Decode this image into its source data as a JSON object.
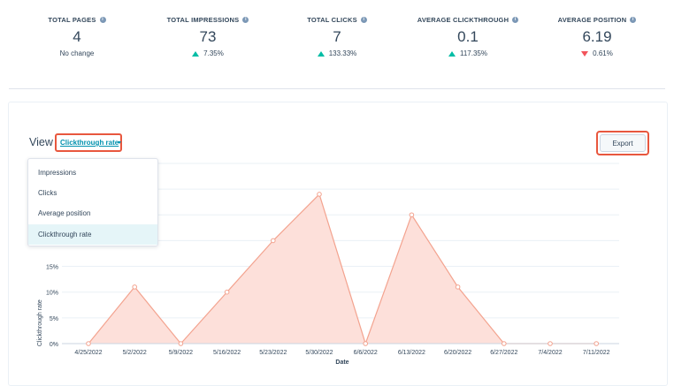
{
  "stats": [
    {
      "label": "TOTAL PAGES",
      "value": "4",
      "change": "No change",
      "direction": "none"
    },
    {
      "label": "TOTAL IMPRESSIONS",
      "value": "73",
      "change": "7.35%",
      "direction": "up"
    },
    {
      "label": "TOTAL CLICKS",
      "value": "7",
      "change": "133.33%",
      "direction": "up"
    },
    {
      "label": "AVERAGE CLICKTHROUGH",
      "value": "0.1",
      "change": "117.35%",
      "direction": "up"
    },
    {
      "label": "AVERAGE POSITION",
      "value": "6.19",
      "change": "0.61%",
      "direction": "down"
    }
  ],
  "info_icon": "i",
  "view": {
    "label": "View",
    "selected": "Clickthrough rate"
  },
  "export_label": "Export",
  "dropdown": {
    "options": [
      "Impressions",
      "Clicks",
      "Average position",
      "Clickthrough rate"
    ],
    "active_index": 3
  },
  "colors": {
    "accent": "#e8573e",
    "area_fill": "#fde0da",
    "area_line": "#f3a38f",
    "up": "#00bda5",
    "down": "#f2545b",
    "link": "#0091ae"
  },
  "chart_data": {
    "type": "area",
    "xlabel": "Date",
    "ylabel": "Clickthrough rate",
    "ylim": [
      0,
      35
    ],
    "yticks": [
      0,
      5,
      10,
      15
    ],
    "ytick_labels": [
      "0%",
      "5%",
      "10%",
      "15%"
    ],
    "categories": [
      "4/25/2022",
      "5/2/2022",
      "5/9/2022",
      "5/16/2022",
      "5/23/2022",
      "5/30/2022",
      "6/6/2022",
      "6/13/2022",
      "6/20/2022",
      "6/27/2022",
      "7/4/2022",
      "7/11/2022"
    ],
    "values": [
      0,
      11,
      0,
      10,
      20,
      29,
      0,
      25,
      11,
      0,
      0,
      0
    ],
    "grid": true
  }
}
